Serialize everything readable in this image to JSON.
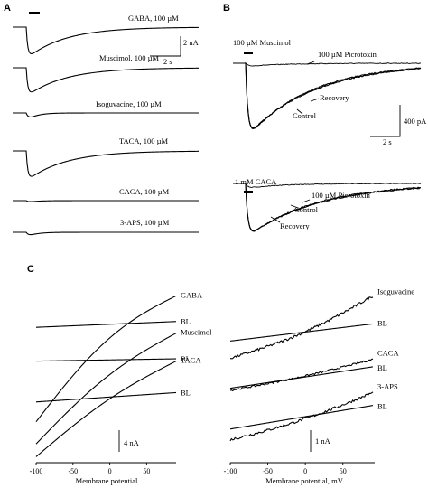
{
  "panels": {
    "A": {
      "letter": "A",
      "traces": [
        {
          "label": "GABA, 100 µM",
          "amplitude_nA": 2.2,
          "kinetics": "slow"
        },
        {
          "label": "Muscimol, 100 µM",
          "amplitude_nA": 2.0,
          "kinetics": "slow"
        },
        {
          "label": "Isoguvacine, 100 µM",
          "amplitude_nA": 0.6,
          "kinetics": "fast"
        },
        {
          "label": "TACA, 100 µM",
          "amplitude_nA": 2.1,
          "kinetics": "slow"
        },
        {
          "label": "CACA, 100 µM",
          "amplitude_nA": 0.15,
          "kinetics": "fast"
        },
        {
          "label": "3-APS, 100 µM",
          "amplitude_nA": 0.35,
          "kinetics": "fast"
        }
      ],
      "scale": {
        "current": "2 nA",
        "time": "2 s"
      }
    },
    "B": {
      "letter": "B",
      "groups": [
        {
          "agonist": "100 µM Muscimol",
          "antagonist": "100 µM Picrotoxin",
          "control": "Control",
          "recovery": "Recovery",
          "amplitude_pA": 470,
          "antagonist_amplitude_pA": 20
        },
        {
          "agonist": "1 mM CACA",
          "antagonist": "100 µM Picrotoxin",
          "control": "Control",
          "recovery": "Recovery",
          "amplitude_pA": 340,
          "antagonist_amplitude_pA": 30
        }
      ],
      "scale": {
        "current": "400 pA",
        "time": "2 s"
      }
    },
    "C": {
      "letter": "C"
    }
  },
  "chart_data": [
    {
      "type": "line",
      "panel": "C-left",
      "xlabel": "Membrane potential",
      "x_ticks": [
        -100,
        -50,
        0,
        50
      ],
      "xlim": [
        -100,
        90
      ],
      "ylim": [
        -7.5,
        8
      ],
      "scale_bar": "4 nA",
      "series": [
        {
          "name": "GABA",
          "x": [
            -100,
            90
          ],
          "y": [
            -4.3,
            6.5
          ],
          "curve": 0.14
        },
        {
          "name": "BL",
          "x": [
            -100,
            90
          ],
          "y": [
            3.8,
            4.3
          ],
          "curve": 0
        },
        {
          "name": "Muscimol",
          "x": [
            -100,
            90
          ],
          "y": [
            -6.2,
            3.3
          ],
          "curve": 0.1
        },
        {
          "name": "BL",
          "x": [
            -100,
            90
          ],
          "y": [
            0.9,
            1.1
          ],
          "curve": 0
        },
        {
          "name": "TACA",
          "x": [
            -100,
            90
          ],
          "y": [
            -7.3,
            0.9
          ],
          "curve": 0.08
        },
        {
          "name": "BL",
          "x": [
            -100,
            90
          ],
          "y": [
            -2.6,
            -1.8
          ],
          "curve": 0
        }
      ]
    },
    {
      "type": "line",
      "panel": "C-right",
      "xlabel": "Membrane potential, mV",
      "x_ticks": [
        -100,
        -50,
        0,
        50
      ],
      "xlim": [
        -100,
        90
      ],
      "ylim": [
        -4.2,
        3.8
      ],
      "scale_bar": "1 nA",
      "series": [
        {
          "name": "Isoguvacine",
          "x": [
            -100,
            90
          ],
          "y": [
            0.5,
            3.4
          ],
          "curve": -0.1,
          "noise": 0.06
        },
        {
          "name": "BL",
          "x": [
            -100,
            90
          ],
          "y": [
            1.3,
            2.1
          ],
          "curve": 0
        },
        {
          "name": "CACA",
          "x": [
            -100,
            90
          ],
          "y": [
            -1.0,
            0.45
          ],
          "curve": -0.06,
          "noise": 0.04
        },
        {
          "name": "BL",
          "x": [
            -100,
            90
          ],
          "y": [
            -0.9,
            0.1
          ],
          "curve": 0
        },
        {
          "name": "3-APS",
          "x": [
            -100,
            90
          ],
          "y": [
            -3.3,
            -1.1
          ],
          "curve": -0.08,
          "noise": 0.06
        },
        {
          "name": "BL",
          "x": [
            -100,
            90
          ],
          "y": [
            -2.8,
            -1.7
          ],
          "curve": 0
        }
      ]
    }
  ]
}
